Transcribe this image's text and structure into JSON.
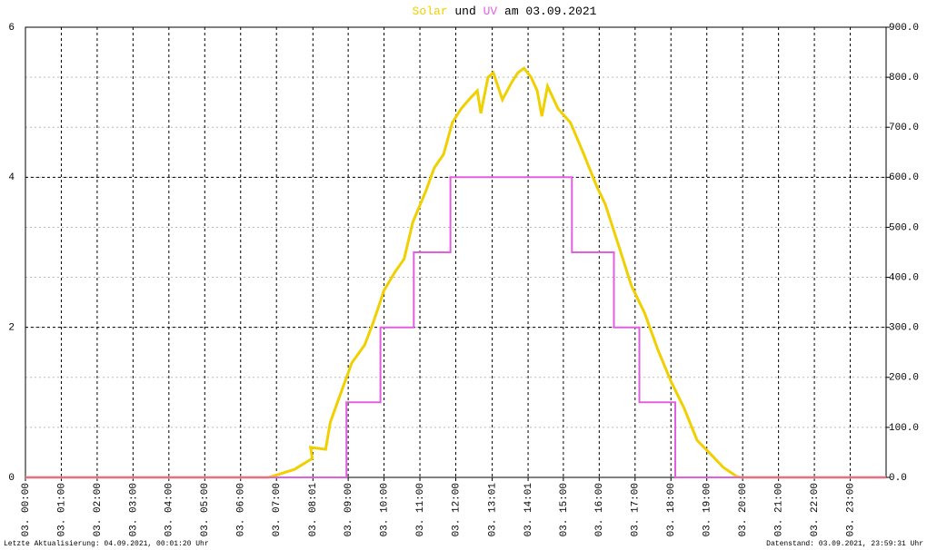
{
  "chart_data": {
    "type": "line",
    "title": {
      "connector": "und",
      "date": "am 03.09.2021"
    },
    "x_type": "hours",
    "xlim": [
      0,
      24
    ],
    "xticks": [
      {
        "value": 0,
        "label": "03. 00:00"
      },
      {
        "value": 1,
        "label": "03. 01:00"
      },
      {
        "value": 2,
        "label": "03. 02:00"
      },
      {
        "value": 3,
        "label": "03. 03:00"
      },
      {
        "value": 4,
        "label": "03. 04:00"
      },
      {
        "value": 5,
        "label": "03. 05:00"
      },
      {
        "value": 6,
        "label": "03. 06:00"
      },
      {
        "value": 7,
        "label": "03. 07:00"
      },
      {
        "value": 8.0167,
        "label": "03. 08:01"
      },
      {
        "value": 9,
        "label": "03. 09:00"
      },
      {
        "value": 10,
        "label": "03. 10:00"
      },
      {
        "value": 11,
        "label": "03. 11:00"
      },
      {
        "value": 12,
        "label": "03. 12:00"
      },
      {
        "value": 13.0167,
        "label": "03. 13:01"
      },
      {
        "value": 14.0167,
        "label": "03. 14:01"
      },
      {
        "value": 15,
        "label": "03. 15:00"
      },
      {
        "value": 16,
        "label": "03. 16:00"
      },
      {
        "value": 17,
        "label": "03. 17:00"
      },
      {
        "value": 18,
        "label": "03. 18:00"
      },
      {
        "value": 19,
        "label": "03. 19:00"
      },
      {
        "value": 20,
        "label": "03. 20:00"
      },
      {
        "value": 21,
        "label": "03. 21:00"
      },
      {
        "value": 22,
        "label": "03. 22:00"
      },
      {
        "value": 23,
        "label": "03. 23:00"
      }
    ],
    "ylim": [
      0,
      6
    ],
    "yticks": [
      0,
      2,
      4,
      6
    ],
    "y2lim": [
      0,
      900
    ],
    "y2ticks": [
      {
        "value": 0,
        "label": "0.0"
      },
      {
        "value": 100,
        "label": "100.0"
      },
      {
        "value": 200,
        "label": "200.0"
      },
      {
        "value": 300,
        "label": "300.0"
      },
      {
        "value": 400,
        "label": "400.0"
      },
      {
        "value": 500,
        "label": "500.0"
      },
      {
        "value": 600,
        "label": "600.0"
      },
      {
        "value": 700,
        "label": "700.0"
      },
      {
        "value": 800,
        "label": "800.0"
      },
      {
        "value": 900,
        "label": "900.0"
      }
    ],
    "series": [
      {
        "name": "Solar",
        "color": "#f0d000",
        "axis": "y2",
        "x": [
          0,
          6.78,
          7.02,
          7.5,
          8.0,
          7.95,
          8.37,
          8.5,
          8.73,
          9.1,
          9.46,
          9.7,
          10.0,
          10.3,
          10.56,
          10.8,
          11.17,
          11.4,
          11.66,
          11.9,
          12.15,
          12.4,
          12.6,
          12.7,
          12.9,
          13.05,
          13.3,
          13.57,
          13.73,
          13.9,
          14.1,
          14.27,
          14.4,
          14.56,
          14.85,
          15.2,
          15.57,
          15.93,
          16.17,
          16.54,
          16.9,
          17.27,
          17.63,
          18.0,
          18.37,
          18.73,
          19.1,
          19.46,
          19.83,
          19.95,
          24
        ],
        "values": [
          0,
          0,
          5,
          16,
          38,
          60,
          56,
          110,
          156,
          229,
          265,
          310,
          374,
          410,
          437,
          510,
          573,
          619,
          646,
          709,
          737,
          758,
          773,
          728,
          800,
          809,
          755,
          791,
          809,
          818,
          800,
          773,
          722,
          782,
          737,
          709,
          646,
          582,
          546,
          464,
          383,
          328,
          256,
          192,
          138,
          74,
          47,
          20,
          2,
          0,
          0
        ]
      },
      {
        "name": "UV",
        "color": "#e060e0",
        "axis": "y",
        "x": [
          0,
          8.95,
          8.95,
          9.9,
          9.9,
          10.83,
          10.83,
          11.85,
          11.85,
          15.24,
          15.24,
          16.41,
          16.41,
          17.12,
          17.12,
          18.12,
          18.12,
          24
        ],
        "values": [
          0,
          0,
          1,
          1,
          2,
          2,
          3,
          3,
          4,
          4,
          3,
          3,
          2,
          2,
          1,
          1,
          0,
          0
        ]
      }
    ],
    "footer_left": "Letzte Aktualisierung: 04.09.2021, 00:01:20 Uhr",
    "footer_right": "Datenstand: 03.09.2021, 23:59:31 Uhr"
  }
}
